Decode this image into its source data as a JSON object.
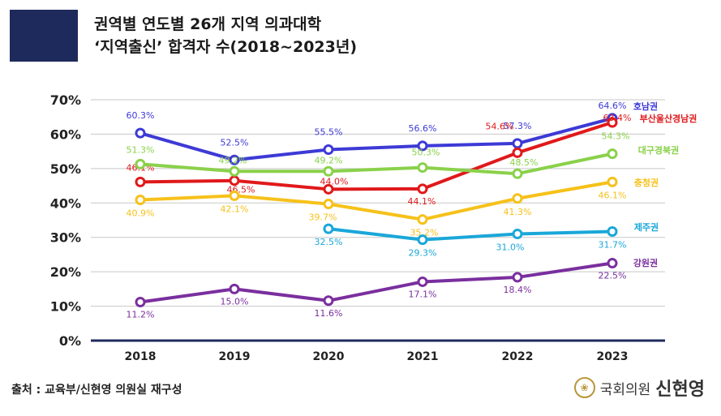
{
  "header": {
    "title_line1": "권역별 연도별 26개 지역 의과대학",
    "title_line2": "‘지역출신’ 합격자 수(2018~2023년)"
  },
  "footer": {
    "source": "출처 : 교육부/신현영 의원실 재구성",
    "credit_org": "국회의원",
    "credit_name": "신현영",
    "seal_icon": "national-assembly-seal-icon"
  },
  "chart_data": {
    "type": "line",
    "categories": [
      "2018",
      "2019",
      "2020",
      "2021",
      "2022",
      "2023"
    ],
    "ylim": [
      0,
      70
    ],
    "yticks": [
      "0%",
      "10%",
      "20%",
      "30%",
      "40%",
      "50%",
      "60%",
      "70%"
    ],
    "grid": true,
    "series": [
      {
        "name": "호남권",
        "color": "#3d3ad6",
        "values": [
          60.3,
          52.5,
          55.5,
          56.6,
          57.3,
          64.6
        ],
        "labels": [
          "60.3%",
          "52.5%",
          "55.5%",
          "56.6%",
          "57.3%",
          "64.6%"
        ]
      },
      {
        "name": "부산울산경남권",
        "color": "#e0191b",
        "values": [
          46.1,
          46.5,
          44.0,
          44.1,
          54.6,
          63.4
        ],
        "labels": [
          "46.1%",
          "46.5%",
          "44.0%",
          "44.1%",
          "54.6%",
          "63.4%"
        ]
      },
      {
        "name": "대구경북권",
        "color": "#8ad14a",
        "values": [
          51.3,
          49.2,
          49.2,
          50.3,
          48.5,
          54.3
        ],
        "labels": [
          "51.3%",
          "49.2%",
          "49.2%",
          "50.3%",
          "48.5%",
          "54.3%"
        ]
      },
      {
        "name": "충청권",
        "color": "#f6c11a",
        "values": [
          40.9,
          42.1,
          39.7,
          35.2,
          41.3,
          46.1
        ],
        "labels": [
          "40.9%",
          "42.1%",
          "39.7%",
          "35.2%",
          "41.3%",
          "46.1%"
        ]
      },
      {
        "name": "제주권",
        "color": "#1aa7d9",
        "values": [
          null,
          null,
          32.5,
          29.3,
          31.0,
          31.7
        ],
        "labels": [
          null,
          null,
          "32.5%",
          "29.3%",
          "31.0%",
          "31.7%"
        ]
      },
      {
        "name": "강원권",
        "color": "#7a2f9e",
        "values": [
          11.2,
          15.0,
          11.6,
          17.1,
          18.4,
          22.5
        ],
        "labels": [
          "11.2%",
          "15.0%",
          "11.6%",
          "17.1%",
          "18.4%",
          "22.5%"
        ]
      }
    ]
  }
}
